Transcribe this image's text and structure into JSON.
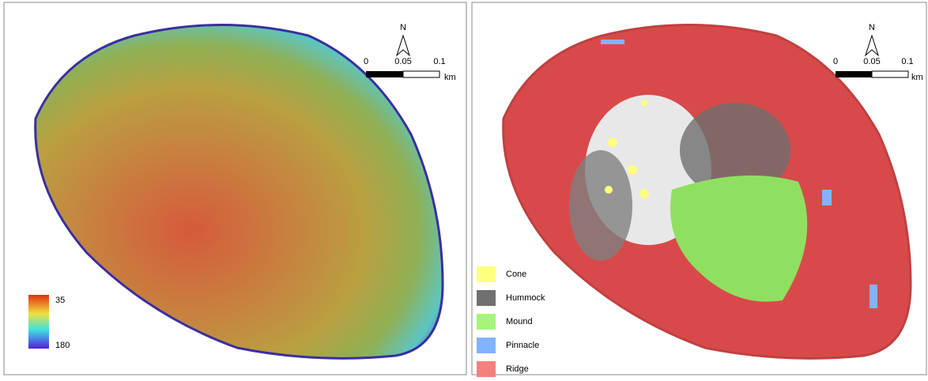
{
  "left_panel": {
    "north": "N",
    "scale": {
      "labels": [
        "0",
        "0.05",
        "0.1"
      ],
      "unit": "km"
    },
    "depth_legend": {
      "top": "35",
      "bottom": "180"
    }
  },
  "right_panel": {
    "north": "N",
    "scale": {
      "labels": [
        "0",
        "0.05",
        "0.1"
      ],
      "unit": "km"
    },
    "legend": [
      {
        "label": "Cone",
        "color": "#ffff80"
      },
      {
        "label": "Hummock",
        "color": "#707070"
      },
      {
        "label": "Mound",
        "color": "#a5f57a"
      },
      {
        "label": "Pinnacle",
        "color": "#80b4ff"
      },
      {
        "label": "Ridge",
        "color": "#f48080"
      }
    ]
  }
}
